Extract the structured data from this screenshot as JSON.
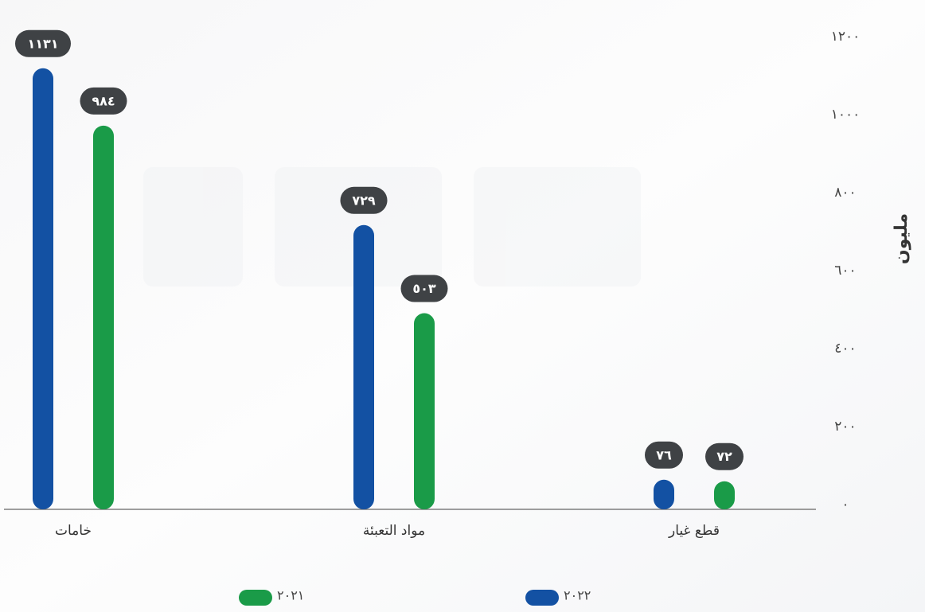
{
  "chart_data": {
    "type": "bar",
    "y_axis_label": "مليون",
    "categories": [
      "خامات",
      "مواد التعبئة",
      "قطع غيار"
    ],
    "series": [
      {
        "name": "٢٠٢٢",
        "color": "#1351a3",
        "values": [
          1131,
          729,
          76
        ],
        "value_labels": [
          "١١٣١",
          "٧٢٩",
          "٧٦"
        ]
      },
      {
        "name": "٢٠٢١",
        "color": "#1a9b48",
        "values": [
          984,
          503,
          72
        ],
        "value_labels": [
          "٩٨٤",
          "٥٠٣",
          "٧٢"
        ]
      }
    ],
    "ylim": [
      0,
      1200
    ],
    "yticks": [
      {
        "value": 0,
        "label": "٠"
      },
      {
        "value": 200,
        "label": "٢٠٠"
      },
      {
        "value": 400,
        "label": "٤٠٠"
      },
      {
        "value": 600,
        "label": "٦٠٠"
      },
      {
        "value": 800,
        "label": "٨٠٠"
      },
      {
        "value": 1000,
        "label": "١٠٠٠"
      },
      {
        "value": 1200,
        "label": "١٢٠٠"
      }
    ],
    "grid": false,
    "legend": "bottom"
  }
}
